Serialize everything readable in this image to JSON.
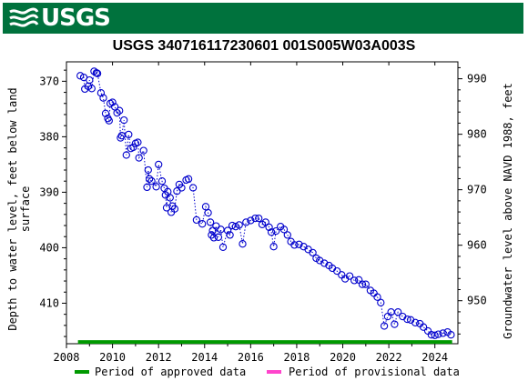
{
  "header": {
    "logo_text": "USGS",
    "logo_icon": "usgs-wave-icon",
    "bar_color": "#00723d"
  },
  "chart_data": {
    "type": "scatter",
    "title": "USGS 340716117230601 001S005W03A003S",
    "ylabel_left": "Depth to water level, feet below land surface",
    "ylabel_left_lines": [
      "Depth to water level, feet below land",
      "surface"
    ],
    "ylabel_right": "Groundwater level above NAVD 1988, feet",
    "x_ticks": [
      2008,
      2010,
      2012,
      2014,
      2016,
      2018,
      2020,
      2022,
      2024
    ],
    "xlim": [
      2008.0,
      2025.0
    ],
    "y_ticks_left": [
      370,
      380,
      390,
      400,
      410
    ],
    "ylim_left": [
      366.5,
      417.3
    ],
    "y_ticks_right": [
      990,
      980,
      970,
      960,
      950
    ],
    "right_offset": 1359.55,
    "grid": false,
    "point_color": "#0000cc",
    "line_style": "dotted",
    "points": [
      [
        2008.6,
        369.0
      ],
      [
        2008.75,
        369.3
      ],
      [
        2008.8,
        371.4
      ],
      [
        2008.95,
        370.9
      ],
      [
        2009.0,
        369.8
      ],
      [
        2009.1,
        371.3
      ],
      [
        2009.2,
        368.2
      ],
      [
        2009.3,
        368.5
      ],
      [
        2009.35,
        368.6
      ],
      [
        2009.5,
        372.1
      ],
      [
        2009.6,
        373.0
      ],
      [
        2009.7,
        375.8
      ],
      [
        2009.8,
        376.7
      ],
      [
        2009.85,
        377.1
      ],
      [
        2009.9,
        374.0
      ],
      [
        2010.0,
        373.8
      ],
      [
        2010.1,
        374.6
      ],
      [
        2010.2,
        375.7
      ],
      [
        2010.3,
        375.3
      ],
      [
        2010.35,
        380.2
      ],
      [
        2010.4,
        379.8
      ],
      [
        2010.5,
        377.0
      ],
      [
        2010.6,
        383.3
      ],
      [
        2010.7,
        379.6
      ],
      [
        2010.8,
        382.1
      ],
      [
        2010.9,
        381.9
      ],
      [
        2011.0,
        381.2
      ],
      [
        2011.1,
        381.0
      ],
      [
        2011.15,
        383.8
      ],
      [
        2011.35,
        382.5
      ],
      [
        2011.5,
        389.1
      ],
      [
        2011.55,
        386.0
      ],
      [
        2011.6,
        387.6
      ],
      [
        2011.7,
        388.0
      ],
      [
        2011.9,
        389.0
      ],
      [
        2012.0,
        385.0
      ],
      [
        2012.15,
        388.0
      ],
      [
        2012.25,
        389.3
      ],
      [
        2012.3,
        390.5
      ],
      [
        2012.35,
        392.8
      ],
      [
        2012.4,
        389.9
      ],
      [
        2012.5,
        391.0
      ],
      [
        2012.55,
        393.6
      ],
      [
        2012.6,
        392.5
      ],
      [
        2012.7,
        393.0
      ],
      [
        2012.8,
        389.8
      ],
      [
        2012.9,
        388.6
      ],
      [
        2013.0,
        389.2
      ],
      [
        2013.2,
        387.8
      ],
      [
        2013.3,
        387.6
      ],
      [
        2013.5,
        389.2
      ],
      [
        2013.65,
        395.0
      ],
      [
        2013.9,
        395.7
      ],
      [
        2014.05,
        392.6
      ],
      [
        2014.15,
        393.7
      ],
      [
        2014.25,
        395.4
      ],
      [
        2014.3,
        397.7
      ],
      [
        2014.35,
        396.9
      ],
      [
        2014.4,
        398.2
      ],
      [
        2014.5,
        396.1
      ],
      [
        2014.6,
        398.1
      ],
      [
        2014.7,
        396.7
      ],
      [
        2014.8,
        399.9
      ],
      [
        2015.0,
        396.9
      ],
      [
        2015.1,
        397.7
      ],
      [
        2015.2,
        396.0
      ],
      [
        2015.35,
        396.2
      ],
      [
        2015.5,
        395.9
      ],
      [
        2015.65,
        399.3
      ],
      [
        2015.8,
        395.4
      ],
      [
        2016.0,
        395.1
      ],
      [
        2016.2,
        394.7
      ],
      [
        2016.35,
        394.7
      ],
      [
        2016.5,
        395.8
      ],
      [
        2016.65,
        395.4
      ],
      [
        2016.8,
        396.3
      ],
      [
        2016.9,
        397.2
      ],
      [
        2017.0,
        399.8
      ],
      [
        2017.1,
        397.0
      ],
      [
        2017.3,
        396.2
      ],
      [
        2017.45,
        396.7
      ],
      [
        2017.6,
        397.7
      ],
      [
        2017.75,
        398.9
      ],
      [
        2017.9,
        399.5
      ],
      [
        2018.1,
        399.4
      ],
      [
        2018.3,
        399.8
      ],
      [
        2018.5,
        400.3
      ],
      [
        2018.7,
        400.9
      ],
      [
        2018.85,
        401.9
      ],
      [
        2019.0,
        402.3
      ],
      [
        2019.2,
        402.8
      ],
      [
        2019.4,
        403.2
      ],
      [
        2019.55,
        403.7
      ],
      [
        2019.75,
        404.2
      ],
      [
        2019.95,
        404.9
      ],
      [
        2020.1,
        405.6
      ],
      [
        2020.3,
        405.1
      ],
      [
        2020.5,
        405.9
      ],
      [
        2020.7,
        405.8
      ],
      [
        2020.85,
        406.6
      ],
      [
        2021.0,
        406.6
      ],
      [
        2021.2,
        407.7
      ],
      [
        2021.35,
        408.2
      ],
      [
        2021.5,
        408.9
      ],
      [
        2021.65,
        409.9
      ],
      [
        2021.8,
        414.1
      ],
      [
        2021.95,
        412.4
      ],
      [
        2022.1,
        411.6
      ],
      [
        2022.25,
        413.8
      ],
      [
        2022.4,
        411.6
      ],
      [
        2022.6,
        412.4
      ],
      [
        2022.8,
        412.9
      ],
      [
        2022.95,
        413.0
      ],
      [
        2023.15,
        413.5
      ],
      [
        2023.35,
        413.7
      ],
      [
        2023.5,
        414.3
      ],
      [
        2023.7,
        415.0
      ],
      [
        2023.85,
        415.7
      ],
      [
        2024.0,
        415.8
      ],
      [
        2024.15,
        415.6
      ],
      [
        2024.35,
        415.4
      ],
      [
        2024.55,
        415.2
      ],
      [
        2024.7,
        415.7
      ]
    ],
    "approved_period": [
      2008.5,
      2024.75
    ],
    "approved_bar_y": 417.0,
    "legend": [
      {
        "label": "Period of approved data",
        "color": "#009900"
      },
      {
        "label": "Period of provisional data",
        "color": "#ff44cc"
      }
    ],
    "legend_placement": "bottom"
  }
}
